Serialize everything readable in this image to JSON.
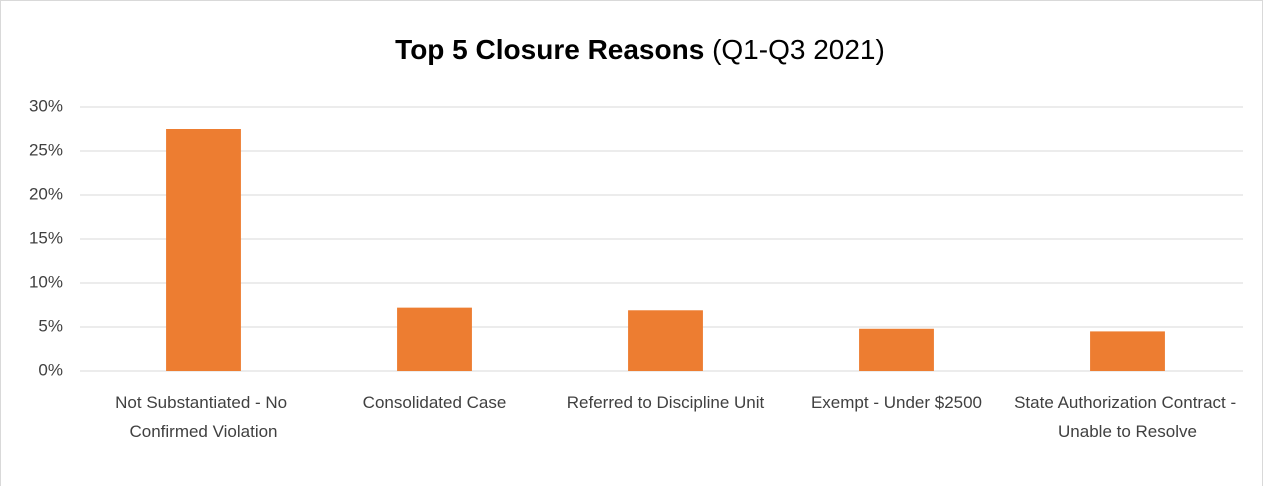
{
  "chart_data": {
    "type": "bar",
    "title": "Top 5 Closure Reasons",
    "subtitle": "(Q1-Q3 2021)",
    "categories": [
      "Not Substantiated - No Confirmed Violation",
      "Consolidated Case",
      "Referred to Discipline Unit",
      "Exempt - Under $2500",
      "State Authorization Contract - Unable to Resolve"
    ],
    "values": [
      27.5,
      7.2,
      6.9,
      4.8,
      4.5
    ],
    "color": "#ed7d31",
    "ylim": [
      0,
      30
    ],
    "yticks": [
      {
        "value": 0,
        "label": "0%"
      },
      {
        "value": 5,
        "label": "5%"
      },
      {
        "value": 10,
        "label": "10%"
      },
      {
        "value": 15,
        "label": "15%"
      },
      {
        "value": 20,
        "label": "20%"
      },
      {
        "value": 25,
        "label": "25%"
      },
      {
        "value": 30,
        "label": "30%"
      }
    ],
    "grid": true
  }
}
